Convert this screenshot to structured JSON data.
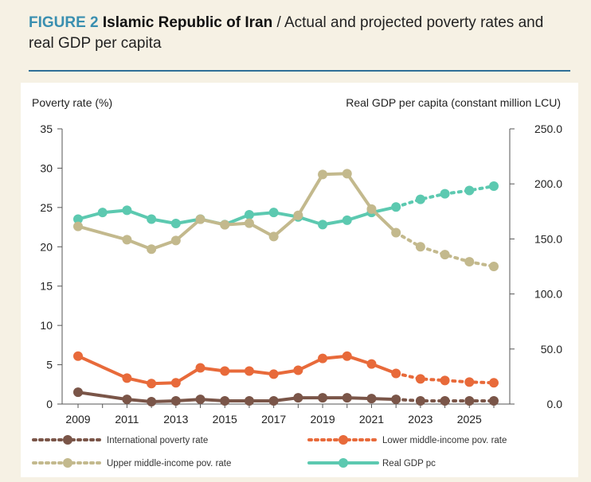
{
  "header": {
    "figure_label": "FIGURE 2",
    "title_bold": "Islamic Republic of Iran",
    "title_rest": " / Actual and projected poverty rates and real GDP per capita"
  },
  "chart_data": {
    "type": "line",
    "title": "Islamic Republic of Iran / Actual and projected poverty rates and real GDP per capita",
    "ylabel_left": "Poverty rate (%)",
    "ylabel_right": "Real GDP per capita (constant million LCU)",
    "xlabel": "",
    "x": [
      2009,
      2010,
      2011,
      2012,
      2013,
      2014,
      2015,
      2016,
      2017,
      2018,
      2019,
      2020,
      2021,
      2022,
      2023,
      2024,
      2025,
      2026
    ],
    "x_tick_labels": [
      "2009",
      "2011",
      "2013",
      "2015",
      "2017",
      "2019",
      "2021",
      "2023",
      "2025"
    ],
    "y_left_ticks": [
      "0",
      "5",
      "10",
      "15",
      "20",
      "25",
      "30",
      "35"
    ],
    "y_right_ticks": [
      "0.0",
      "50.0",
      "100.0",
      "150.0",
      "200.0",
      "250.0"
    ],
    "ylim_left": [
      0,
      35
    ],
    "ylim_right": [
      0,
      250
    ],
    "projection_starts_after": 2022,
    "grid": false,
    "legend_position": "bottom",
    "series": [
      {
        "name": "International poverty rate",
        "axis": "left",
        "color": "#7a5548",
        "values": [
          1.5,
          null,
          0.6,
          0.3,
          0.4,
          0.6,
          0.4,
          0.4,
          0.4,
          0.8,
          0.8,
          0.8,
          0.7,
          0.6,
          0.4,
          0.4,
          0.4,
          0.4
        ]
      },
      {
        "name": "Lower middle-income pov. rate",
        "axis": "left",
        "color": "#e86a3a",
        "values": [
          6.1,
          null,
          3.3,
          2.6,
          2.7,
          4.6,
          4.2,
          4.2,
          3.8,
          4.3,
          5.8,
          6.1,
          5.1,
          3.9,
          3.2,
          3.0,
          2.8,
          2.7
        ]
      },
      {
        "name": "Upper middle-income pov. rate",
        "axis": "left",
        "color": "#c3b98d",
        "values": [
          22.6,
          null,
          20.9,
          19.7,
          20.8,
          23.5,
          22.8,
          23.0,
          21.3,
          24.0,
          29.2,
          29.3,
          24.8,
          21.8,
          20.0,
          19.0,
          18.1,
          17.5
        ]
      },
      {
        "name": "Real GDP pc",
        "axis": "right",
        "color": "#5cc9b0",
        "values": [
          168,
          174,
          176,
          168,
          164,
          168,
          163,
          172,
          174,
          170,
          163,
          167,
          174,
          179,
          186,
          191,
          194,
          198
        ]
      }
    ]
  }
}
